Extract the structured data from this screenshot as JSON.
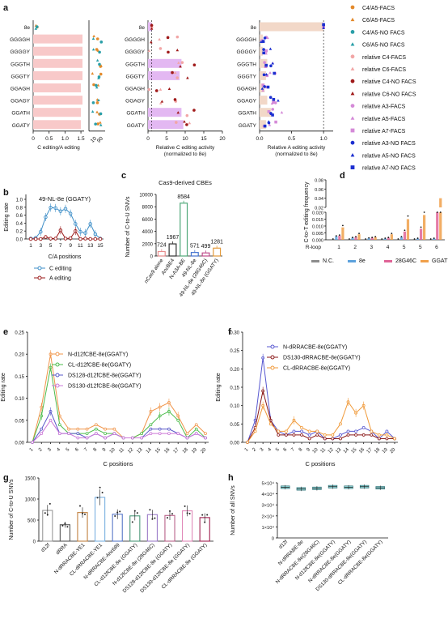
{
  "panels": {
    "a": {
      "letter": "a",
      "rows": [
        "8e",
        "GGGGH",
        "GGGGY",
        "GGGTH",
        "GGGTY",
        "GGAGH",
        "GGAGY",
        "GGATH",
        "GGATY"
      ],
      "ratio_xlabel": "C editing/A editing",
      "ratio_ticks": [
        "0",
        "0.5",
        "1.0",
        "1.5"
      ],
      "ratio_break_ticks": [
        "10",
        "90"
      ],
      "c_xlabel": "Relative C editing activity\n(normalized to 8e)",
      "c_ticks": [
        "0",
        "5",
        "10",
        "15",
        "20"
      ],
      "a_xlabel": "Relative A editing activity\n(normalized to 8e)",
      "a_ticks": [
        "0.0",
        "0.5",
        "1.0"
      ]
    },
    "b": {
      "letter": "b",
      "title": "49-NL-8e (GGATY)",
      "ylabel": "Editing rate",
      "xlabel": "C/A positions",
      "yticks": [
        "0.0",
        "0.2",
        "0.4",
        "0.6",
        "0.8",
        "1.0"
      ],
      "xticks": [
        "1",
        "3",
        "5",
        "7",
        "9",
        "11",
        "13",
        "15"
      ],
      "legend": [
        "C editing",
        "A editing"
      ]
    },
    "c": {
      "letter": "c",
      "title": "Cas9-derived CBEs",
      "ylabel": "Number of C-to-U SNVs",
      "yticks": [
        "0",
        "2000",
        "4000",
        "6000",
        "8000",
        "10000"
      ]
    },
    "d": {
      "letter": "d",
      "ylabel": "C-to-T editing frequency",
      "yticks_low": [
        "0.000",
        "0.005",
        "0.010",
        "0.015",
        "0.020"
      ],
      "yticks_high": [
        "0.02",
        "0.04",
        "0.06",
        "0.08"
      ],
      "xlabel_prefix": "R-loop",
      "xticks": [
        "1",
        "2",
        "3",
        "4",
        "5",
        "5",
        "6"
      ],
      "legend": [
        "N.C.",
        "8e",
        "28G46C",
        "GGATY"
      ]
    },
    "e": {
      "letter": "e",
      "ylabel": "Editing rate",
      "xlabel": "C positions",
      "yticks": [
        "0.00",
        "0.05",
        "0.10",
        "0.15",
        "0.20",
        "0.25"
      ]
    },
    "f": {
      "letter": "f",
      "ylabel": "Editing rate",
      "xlabel": "C positions",
      "yticks": [
        "0.00",
        "0.05",
        "0.10",
        "0.15",
        "0.20",
        "0.25",
        "0.30"
      ]
    },
    "g": {
      "letter": "g",
      "ylabel": "Number of C-to-U SNVs",
      "yticks": [
        "0",
        "500",
        "1000",
        "1500"
      ]
    },
    "h": {
      "letter": "h",
      "ylabel": "Number of all SNVs",
      "yticks": [
        "0",
        "1×10⁴",
        "2×10⁴",
        "3×10⁴",
        "4×10⁴",
        "5×10⁴"
      ]
    }
  },
  "legend_a": [
    {
      "label": "C4/A5-FACS",
      "color": "#e38a2c",
      "shape": "circle"
    },
    {
      "label": "C6/A5-FACS",
      "color": "#e38a2c",
      "shape": "triangle"
    },
    {
      "label": "C4/A5-NO FACS",
      "color": "#2a9fa8",
      "shape": "circle"
    },
    {
      "label": "C6/A5-NO FACS",
      "color": "#2a9fa8",
      "shape": "triangle"
    },
    {
      "label": "relative C4-FACS",
      "color": "#f2a6a6",
      "shape": "circle"
    },
    {
      "label": "relative C6-FACS",
      "color": "#f2a6a6",
      "shape": "triangle"
    },
    {
      "label": "relative C4-NO FACS",
      "color": "#a01a1a",
      "shape": "circle"
    },
    {
      "label": "relative C6-NO FACS",
      "color": "#a01a1a",
      "shape": "triangle"
    },
    {
      "label": "relative A3-FACS",
      "color": "#d58ad8",
      "shape": "circle"
    },
    {
      "label": "relative A5-FACS",
      "color": "#d58ad8",
      "shape": "triangle"
    },
    {
      "label": "relative A7-FACS",
      "color": "#d58ad8",
      "shape": "square"
    },
    {
      "label": "relative A3-NO FACS",
      "color": "#1c2fd0",
      "shape": "circle"
    },
    {
      "label": "relative A5-NO FACS",
      "color": "#1c2fd0",
      "shape": "triangle"
    },
    {
      "label": "relative A7-NO FACS",
      "color": "#1c2fd0",
      "shape": "square"
    }
  ],
  "chart_data": [
    {
      "id": "a-ratio",
      "type": "bar",
      "orientation": "horizontal",
      "categories": [
        "8e",
        "GGGGH",
        "GGGGY",
        "GGGTH",
        "GGGTY",
        "GGAGH",
        "GGAGY",
        "GGATH",
        "GGATY"
      ],
      "values": [
        0,
        1.55,
        1.55,
        1.55,
        1.55,
        1.5,
        1.55,
        1.5,
        1.5
      ],
      "xlabel": "C editing/A editing",
      "xlim": [
        0,
        1.6
      ],
      "color": "#f8c9c9"
    },
    {
      "id": "a-c",
      "type": "bar",
      "orientation": "horizontal",
      "categories": [
        "8e",
        "GGGGH",
        "GGGGY",
        "GGGTH",
        "GGGTY",
        "GGAGH",
        "GGAGY",
        "GGATH",
        "GGATY"
      ],
      "values": [
        1,
        0,
        0,
        9,
        8.5,
        0,
        0,
        9,
        9.5
      ],
      "xlabel": "Relative C editing activity (normalized to 8e)",
      "xlim": [
        0,
        20
      ],
      "color": "#e3b8f2"
    },
    {
      "id": "a-a",
      "type": "bar",
      "orientation": "horizontal",
      "categories": [
        "8e",
        "GGGGH",
        "GGGGY",
        "GGGTH",
        "GGGTY",
        "GGAGH",
        "GGAGY",
        "GGATH",
        "GGATY"
      ],
      "values": [
        1,
        0.05,
        0.05,
        0.12,
        0.1,
        0.08,
        0.12,
        0.18,
        0.1
      ],
      "xlabel": "Relative A editing activity (normalized to 8e)",
      "xlim": [
        0,
        1.15
      ],
      "color": "#f2d8c8"
    },
    {
      "id": "b",
      "type": "line",
      "title": "49-NL-8e (GGATY)",
      "xlabel": "C/A positions",
      "ylabel": "Editing rate",
      "x": [
        1,
        2,
        3,
        4,
        5,
        6,
        7,
        8,
        9,
        10,
        11,
        12,
        13,
        14,
        15
      ],
      "ylim": [
        0,
        1.0
      ],
      "series": [
        {
          "name": "C editing",
          "color": "#3f8fc8",
          "values": [
            0.01,
            0.03,
            0.18,
            0.55,
            0.79,
            0.78,
            0.7,
            0.76,
            0.64,
            0.38,
            0.18,
            0.15,
            0.38,
            0.12,
            0.01
          ]
        },
        {
          "name": "A editing",
          "color": "#9b1b1b",
          "values": [
            0.0,
            0.0,
            0.0,
            0.05,
            0.01,
            0.01,
            0.22,
            0.01,
            0.02,
            0.2,
            0.0,
            0.01,
            0.0,
            0.0,
            0.0
          ]
        }
      ]
    },
    {
      "id": "c",
      "type": "bar",
      "title": "Cas9-derived CBEs",
      "ylabel": "Number of C-to-U SNVs",
      "ylim": [
        0,
        10000
      ],
      "categories": [
        "nCas9 alone",
        "AncBE4",
        "N-A3A-BE",
        "49-NL-8e",
        "49-NL-8e (28G46C)",
        "49-NL-8e (GGATY)"
      ],
      "values": [
        724,
        1967,
        8584,
        571,
        499,
        1281
      ],
      "colors": [
        "#e88c8c",
        "#333333",
        "#4fa878",
        "#4575d0",
        "#c04c8c",
        "#e39a3c"
      ]
    },
    {
      "id": "d",
      "type": "bar",
      "ylabel": "C-to-T editing frequency",
      "categories": [
        "1",
        "2",
        "3",
        "4",
        "5",
        "5",
        "6"
      ],
      "series": [
        {
          "name": "N.C.",
          "color": "#8c8c8c",
          "values": [
            0.0005,
            0.0005,
            0.0005,
            0.0005,
            0.0005,
            0.0005,
            0.0005
          ]
        },
        {
          "name": "8e",
          "color": "#5da2dd",
          "values": [
            0.0025,
            0.0015,
            0.0012,
            0.001,
            0.002,
            0.001,
            0.001
          ]
        },
        {
          "name": "28G46C",
          "color": "#e06497",
          "values": [
            0.003,
            0.002,
            0.0015,
            0.0015,
            0.006,
            0.008,
            0.02
          ]
        },
        {
          "name": "GGATY",
          "color": "#f0a04a",
          "values": [
            0.009,
            0.004,
            0.002,
            0.004,
            0.015,
            0.018,
            0.04
          ]
        }
      ]
    },
    {
      "id": "e",
      "type": "line",
      "xlabel": "C positions",
      "ylabel": "Editing rate",
      "ylim": [
        0,
        0.25
      ],
      "x": [
        1,
        2,
        3,
        4,
        5,
        6,
        7,
        8,
        9,
        10,
        11,
        12,
        13,
        14,
        15,
        16,
        17,
        18,
        19,
        20
      ],
      "series": [
        {
          "name": "N-d12fCBE-8e(GGATY)",
          "color": "#f0954a",
          "values": [
            0.0,
            0.08,
            0.2,
            0.06,
            0.03,
            0.03,
            0.03,
            0.04,
            0.03,
            0.03,
            0.01,
            0.01,
            0.02,
            0.07,
            0.08,
            0.09,
            0.06,
            0.02,
            0.04,
            0.02
          ]
        },
        {
          "name": "CL-d12fCBE-8e(GGATY)",
          "color": "#4cbc4c",
          "values": [
            0.0,
            0.06,
            0.17,
            0.04,
            0.02,
            0.02,
            0.02,
            0.03,
            0.02,
            0.02,
            0.01,
            0.01,
            0.02,
            0.04,
            0.06,
            0.07,
            0.05,
            0.01,
            0.03,
            0.01
          ]
        },
        {
          "name": "DS128-d12fCBE-8e(GGATY)",
          "color": "#5858c8",
          "values": [
            0.0,
            0.03,
            0.07,
            0.02,
            0.02,
            0.02,
            0.01,
            0.02,
            0.01,
            0.02,
            0.01,
            0.01,
            0.01,
            0.03,
            0.03,
            0.03,
            0.02,
            0.01,
            0.02,
            0.01
          ]
        },
        {
          "name": "DS130-d12fCBE-8e(GGATY)",
          "color": "#cc78d8",
          "values": [
            0.0,
            0.02,
            0.05,
            0.02,
            0.02,
            0.01,
            0.01,
            0.02,
            0.01,
            0.02,
            0.01,
            0.01,
            0.01,
            0.02,
            0.02,
            0.02,
            0.02,
            0.01,
            0.02,
            0.01
          ]
        }
      ]
    },
    {
      "id": "f",
      "type": "line",
      "xlabel": "C positions",
      "ylabel": "Editing rate",
      "ylim": [
        0,
        0.3
      ],
      "x": [
        1,
        2,
        3,
        4,
        5,
        6,
        7,
        8,
        9,
        10,
        11,
        12,
        13,
        14,
        15,
        16,
        17,
        18,
        19,
        20
      ],
      "series": [
        {
          "name": "N-dRRACBE-8e(GGATY)",
          "color": "#5858d0",
          "values": [
            0.0,
            0.06,
            0.23,
            0.06,
            0.03,
            0.02,
            0.03,
            0.03,
            0.02,
            0.03,
            0.01,
            0.01,
            0.02,
            0.03,
            0.03,
            0.04,
            0.03,
            0.01,
            0.03,
            0.01
          ]
        },
        {
          "name": "DS130-dRRACBE-8e(GGATY)",
          "color": "#8b1a1a",
          "values": [
            0.0,
            0.04,
            0.14,
            0.06,
            0.02,
            0.02,
            0.02,
            0.02,
            0.01,
            0.02,
            0.01,
            0.01,
            0.01,
            0.02,
            0.02,
            0.02,
            0.02,
            0.01,
            0.01,
            0.01
          ]
        },
        {
          "name": "CL-dRRACBE-8e(GGATY)",
          "color": "#f09a3a",
          "values": [
            0.0,
            0.03,
            0.1,
            0.05,
            0.03,
            0.03,
            0.06,
            0.04,
            0.03,
            0.03,
            0.02,
            0.02,
            0.05,
            0.11,
            0.08,
            0.1,
            0.03,
            0.02,
            0.02,
            0.01
          ]
        }
      ]
    },
    {
      "id": "g",
      "type": "bar",
      "ylabel": "Number of C-to-U SNVs",
      "ylim": [
        0,
        1500
      ],
      "categories": [
        "d12f",
        "dRRA",
        "N-dRRACBE-YE1",
        "CL-dRRACBE-YE1",
        "N-dRRACBE-Anc689",
        "CL-d12fCBE-8e (GGATY)",
        "N-d12fCBE-8e (28G46C)",
        "DS128-d12fCBE-8e (GGATY)",
        "DS130-d12fCBE-8e (GGATY)",
        "CL-dRRACBE-8e (GGATY)"
      ],
      "values": [
        730,
        390,
        680,
        1040,
        640,
        600,
        630,
        610,
        720,
        560
      ],
      "colors": [
        "#999999",
        "#555555",
        "#c08040",
        "#7ab0e0",
        "#5878c8",
        "#4a9878",
        "#9c7cc8",
        "#b86088",
        "#e088b8",
        "#a02050"
      ]
    },
    {
      "id": "h",
      "type": "box",
      "ylabel": "Number of all SNVs",
      "ylim": [
        0,
        50000
      ],
      "categories": [
        "d12f",
        "N-dRRABE-8e",
        "N-dRRACBE-8e(28G46C)",
        "N-d12fCBE-8e(GGATY)",
        "N-dRRACBE-8e(GGATY)",
        "DS130-dRRACBE-8e(GGATY)",
        "CL-dRRACBE-8e(GGATY)"
      ],
      "values": [
        46000,
        44500,
        45000,
        46500,
        46000,
        46500,
        45500
      ],
      "color": "#3ab4b8"
    }
  ]
}
